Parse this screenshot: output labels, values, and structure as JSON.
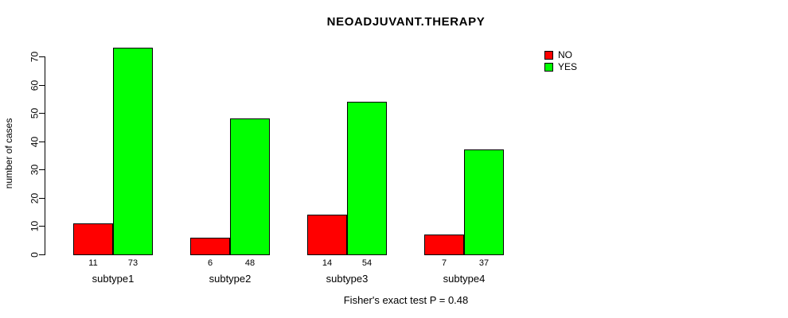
{
  "chart_data": {
    "type": "bar",
    "title": "NEOADJUVANT.THERAPY",
    "categories": [
      "subtype1",
      "subtype2",
      "subtype3",
      "subtype4"
    ],
    "series": [
      {
        "name": "NO",
        "color": "#FF0000",
        "values": [
          11,
          6,
          14,
          7
        ]
      },
      {
        "name": "YES",
        "color": "#00FF00",
        "values": [
          73,
          48,
          54,
          37
        ]
      }
    ],
    "xlabel": "",
    "ylabel": "number of cases",
    "ylim": [
      0,
      70
    ],
    "yticks": [
      0,
      10,
      20,
      30,
      40,
      50,
      60,
      70
    ],
    "grid": false,
    "legend_position": "top-right",
    "bar_value_labels": [
      [
        "11",
        "73"
      ],
      [
        "6",
        "48"
      ],
      [
        "14",
        "54"
      ],
      [
        "7",
        "37"
      ]
    ],
    "caption": "Fisher's exact test P = 0.48"
  }
}
